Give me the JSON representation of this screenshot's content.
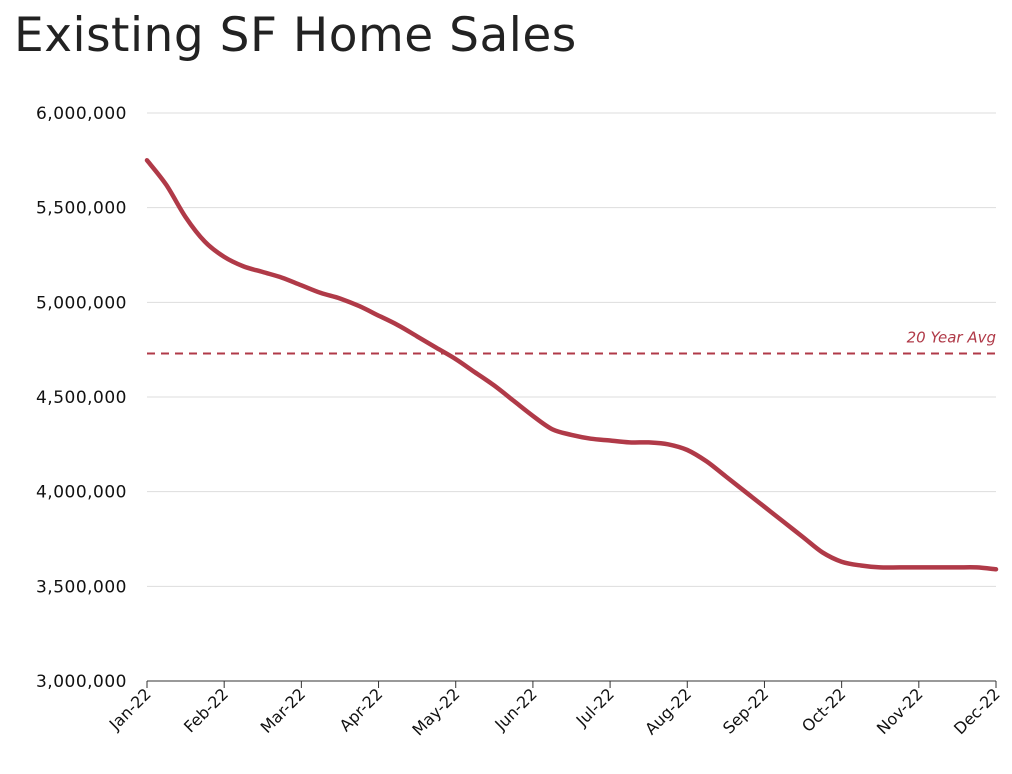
{
  "chart_data": {
    "type": "line",
    "title": "Existing SF Home Sales",
    "xlabel": "",
    "ylabel": "",
    "ylim": [
      3000000,
      6000000
    ],
    "y_ticks": [
      "6,000,000",
      "5,500,000",
      "5,000,000",
      "4,500,000",
      "4,000,000",
      "3,500,000",
      "3,000,000"
    ],
    "y_tick_values": [
      6000000,
      5500000,
      5000000,
      4500000,
      4000000,
      3500000,
      3000000
    ],
    "categories": [
      "Jan-22",
      "Feb-22",
      "Mar-22",
      "Apr-22",
      "May-22",
      "Jun-22",
      "Jul-22",
      "Aug-22",
      "Sep-22",
      "Oct-22",
      "Nov-22",
      "Dec-22"
    ],
    "grid": true,
    "series": [
      {
        "color": "#b03a48",
        "x": [
          0,
          0.25,
          0.5,
          0.75,
          1,
          1.25,
          1.5,
          1.75,
          2,
          2.25,
          2.5,
          2.75,
          3,
          3.25,
          3.5,
          3.75,
          4,
          4.25,
          4.5,
          4.75,
          5,
          5.25,
          5.5,
          5.75,
          6,
          6.25,
          6.5,
          6.75,
          7,
          7.25,
          7.5,
          7.75,
          8,
          8.25,
          8.5,
          8.75,
          9,
          9.25,
          9.5,
          9.75,
          10,
          10.25,
          10.5,
          10.75,
          11
        ],
        "values": [
          5750000,
          5620000,
          5450000,
          5320000,
          5240000,
          5190000,
          5160000,
          5130000,
          5090000,
          5050000,
          5020000,
          4980000,
          4930000,
          4880000,
          4820000,
          4760000,
          4700000,
          4630000,
          4560000,
          4480000,
          4400000,
          4330000,
          4300000,
          4280000,
          4270000,
          4260000,
          4260000,
          4250000,
          4220000,
          4160000,
          4080000,
          4000000,
          3920000,
          3840000,
          3760000,
          3680000,
          3630000,
          3610000,
          3600000,
          3600000,
          3600000,
          3600000,
          3600000,
          3600000,
          3590000
        ]
      }
    ],
    "reference_line": {
      "value": 4730000,
      "label": "20 Year Avg",
      "style": "dashed",
      "color": "#b03a48"
    }
  }
}
